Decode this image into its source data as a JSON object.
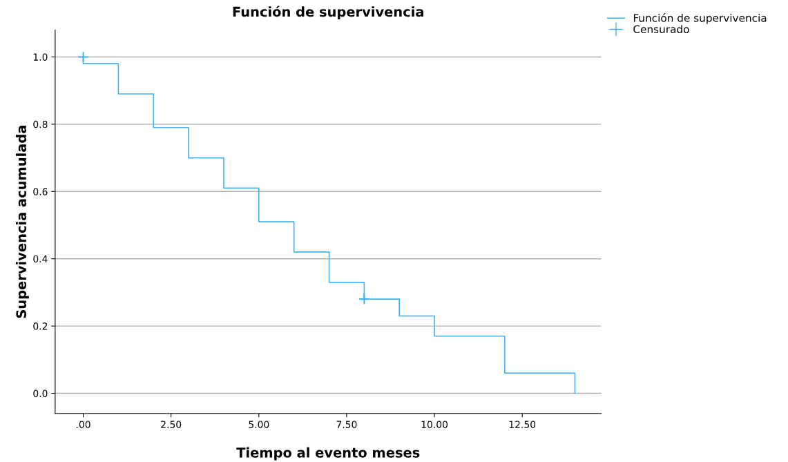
{
  "chart_data": {
    "type": "step",
    "title": "Función de supervivencia",
    "xlabel": "Tiempo al evento meses",
    "ylabel": "Supervivencia acumulada",
    "series": [
      {
        "name": "Función de supervivencia",
        "color": "#45b3ef",
        "x": [
          0,
          0,
          1,
          2,
          3,
          4,
          5,
          6,
          7,
          8,
          9,
          10,
          12,
          14
        ],
        "values": [
          1.0,
          0.98,
          0.89,
          0.79,
          0.7,
          0.61,
          0.51,
          0.42,
          0.33,
          0.28,
          0.23,
          0.17,
          0.06,
          0.0
        ]
      },
      {
        "name": "Censurado",
        "type": "scatter",
        "marker": "cross",
        "color": "#45b3ef",
        "x": [
          0,
          8
        ],
        "values": [
          1.0,
          0.28
        ]
      }
    ],
    "xlim": [
      -0.8,
      14.75
    ],
    "xticks": [
      {
        "value": 0,
        "label": ".00"
      },
      {
        "value": 2.5,
        "label": "2.50"
      },
      {
        "value": 5,
        "label": "5.00"
      },
      {
        "value": 7.5,
        "label": "7.50"
      },
      {
        "value": 10,
        "label": "10.00"
      },
      {
        "value": 12.5,
        "label": "12.50"
      }
    ],
    "ylim": [
      -0.06,
      1.08
    ],
    "yticks": [
      {
        "value": 0,
        "label": "0.0"
      },
      {
        "value": 0.2,
        "label": "0.2"
      },
      {
        "value": 0.4,
        "label": "0.4"
      },
      {
        "value": 0.6,
        "label": "0.6"
      },
      {
        "value": 0.8,
        "label": "0.8"
      },
      {
        "value": 1.0,
        "label": "1.0"
      }
    ],
    "grid": "y",
    "legend": "top right"
  }
}
